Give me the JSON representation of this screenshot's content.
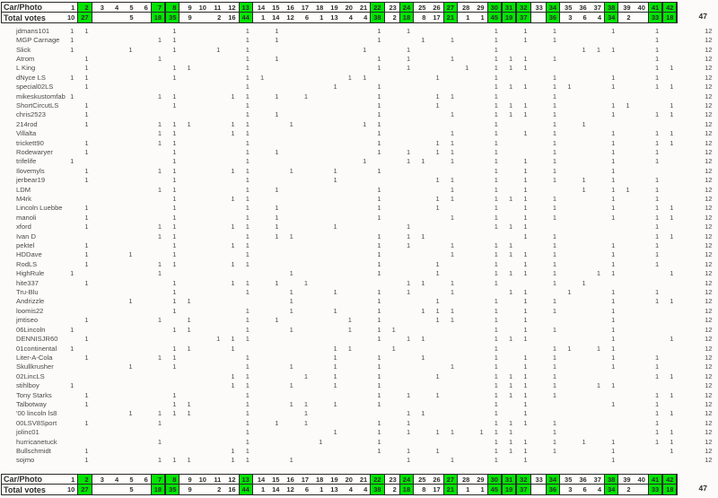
{
  "header": {
    "car_photo_label": "Car/Photo",
    "total_votes_label": "Total votes",
    "grand_total": "47"
  },
  "vote_mark": "1",
  "green_color": "#00e400",
  "columns": [
    1,
    2,
    3,
    4,
    5,
    6,
    7,
    8,
    9,
    10,
    11,
    12,
    13,
    14,
    15,
    16,
    17,
    18,
    19,
    20,
    21,
    22,
    23,
    24,
    25,
    26,
    27,
    28,
    29,
    30,
    31,
    32,
    33,
    34,
    35,
    36,
    37,
    38,
    39,
    40,
    41,
    42
  ],
  "green_columns": [
    2,
    7,
    8,
    13,
    22,
    24,
    27,
    30,
    31,
    32,
    34,
    38,
    41,
    42
  ],
  "totals": [
    "10",
    "27",
    "",
    "",
    "5",
    "",
    "18",
    "35",
    "9",
    "",
    "2",
    "16",
    "44",
    "1",
    "14",
    "12",
    "6",
    "1",
    "13",
    "4",
    "4",
    "38",
    "2",
    "18",
    "8",
    "17",
    "21",
    "1",
    "1",
    "45",
    "19",
    "37",
    "",
    "36",
    "3",
    "6",
    "4",
    "34",
    "2",
    "",
    "33",
    "18"
  ],
  "voters": [
    {
      "name": "jdmans101",
      "votes": [
        1,
        2,
        8,
        13,
        15,
        22,
        24,
        30,
        32,
        34,
        38,
        41
      ],
      "total": "12"
    },
    {
      "name": "MGP Carnage",
      "votes": [
        1,
        7,
        8,
        13,
        15,
        22,
        25,
        27,
        30,
        32,
        34,
        41
      ],
      "total": "12"
    },
    {
      "name": "Slick",
      "votes": [
        1,
        5,
        8,
        11,
        13,
        21,
        24,
        30,
        36,
        37,
        38,
        41
      ],
      "total": "12"
    },
    {
      "name": "Atrom",
      "votes": [
        2,
        7,
        13,
        15,
        22,
        24,
        27,
        30,
        31,
        32,
        34,
        41
      ],
      "total": "12"
    },
    {
      "name": "L King",
      "votes": [
        2,
        8,
        9,
        13,
        22,
        24,
        28,
        30,
        31,
        32,
        41,
        42
      ],
      "total": "12"
    },
    {
      "name": "dNyce LS",
      "votes": [
        1,
        2,
        8,
        13,
        14,
        20,
        21,
        26,
        30,
        34,
        38,
        41
      ],
      "total": "12"
    },
    {
      "name": "special02LS",
      "votes": [
        2,
        13,
        19,
        22,
        30,
        31,
        32,
        34,
        35,
        38,
        41,
        42
      ],
      "total": "12"
    },
    {
      "name": "mikeskustomfab",
      "votes": [
        1,
        7,
        8,
        12,
        13,
        15,
        17,
        22,
        26,
        27,
        30,
        34
      ],
      "total": "12"
    },
    {
      "name": "ShortCircutLS",
      "votes": [
        2,
        8,
        13,
        22,
        26,
        30,
        31,
        32,
        34,
        38,
        39,
        42
      ],
      "total": "12"
    },
    {
      "name": "chris2523",
      "votes": [
        2,
        13,
        15,
        22,
        27,
        30,
        31,
        32,
        34,
        38,
        41,
        42
      ],
      "total": "12"
    },
    {
      "name": "214rod",
      "votes": [
        2,
        7,
        8,
        9,
        12,
        13,
        16,
        21,
        22,
        30,
        34,
        36
      ],
      "total": "12"
    },
    {
      "name": "Villalta",
      "votes": [
        7,
        8,
        12,
        13,
        22,
        27,
        30,
        32,
        34,
        38,
        41,
        42
      ],
      "total": "12"
    },
    {
      "name": "trickett90",
      "votes": [
        2,
        7,
        8,
        13,
        22,
        26,
        27,
        30,
        34,
        38,
        41,
        42
      ],
      "total": "12"
    },
    {
      "name": "Rodewaryer",
      "votes": [
        2,
        8,
        13,
        15,
        22,
        24,
        26,
        27,
        30,
        34,
        38,
        41
      ],
      "total": "12"
    },
    {
      "name": "trifelife",
      "votes": [
        1,
        8,
        13,
        21,
        24,
        25,
        27,
        30,
        32,
        34,
        38,
        41
      ],
      "total": "12"
    },
    {
      "name": "Ilovemyls",
      "votes": [
        2,
        7,
        8,
        12,
        13,
        16,
        19,
        22,
        30,
        32,
        34,
        38
      ],
      "total": "12"
    },
    {
      "name": "jerbear19",
      "votes": [
        2,
        8,
        13,
        19,
        26,
        27,
        30,
        32,
        34,
        36,
        38,
        41
      ],
      "total": "12"
    },
    {
      "name": "LDM",
      "votes": [
        7,
        8,
        13,
        15,
        22,
        27,
        30,
        32,
        36,
        38,
        39,
        41
      ],
      "total": "12"
    },
    {
      "name": "M4rk",
      "votes": [
        8,
        12,
        13,
        22,
        26,
        27,
        30,
        31,
        32,
        34,
        38,
        41
      ],
      "total": "12"
    },
    {
      "name": "Lincoln Luebbe",
      "votes": [
        2,
        8,
        13,
        15,
        22,
        26,
        30,
        32,
        34,
        38,
        41,
        42
      ],
      "total": "12"
    },
    {
      "name": "manoli",
      "votes": [
        2,
        8,
        13,
        15,
        22,
        27,
        30,
        32,
        34,
        38,
        41,
        42
      ],
      "total": "12"
    },
    {
      "name": "xford",
      "votes": [
        2,
        7,
        8,
        12,
        13,
        15,
        19,
        24,
        30,
        31,
        32,
        41
      ],
      "total": "12"
    },
    {
      "name": "Ivan D",
      "votes": [
        7,
        8,
        13,
        15,
        16,
        22,
        24,
        25,
        32,
        34,
        41,
        42
      ],
      "total": "12"
    },
    {
      "name": "pektel",
      "votes": [
        2,
        8,
        12,
        13,
        22,
        24,
        27,
        30,
        31,
        34,
        38,
        41
      ],
      "total": "12"
    },
    {
      "name": "HDDave",
      "votes": [
        2,
        5,
        8,
        13,
        22,
        27,
        30,
        31,
        32,
        34,
        38,
        41
      ],
      "total": "12"
    },
    {
      "name": "RodLS",
      "votes": [
        2,
        7,
        8,
        12,
        13,
        22,
        26,
        30,
        32,
        34,
        38,
        41
      ],
      "total": "12"
    },
    {
      "name": "HighRule",
      "votes": [
        1,
        7,
        16,
        22,
        26,
        30,
        31,
        32,
        34,
        37,
        38,
        42
      ],
      "total": "12"
    },
    {
      "name": "hite337",
      "votes": [
        2,
        8,
        12,
        13,
        15,
        17,
        24,
        25,
        27,
        30,
        34,
        36
      ],
      "total": "12"
    },
    {
      "name": "Tru-Blu",
      "votes": [
        8,
        13,
        16,
        19,
        22,
        24,
        27,
        31,
        32,
        35,
        38,
        41
      ],
      "total": "12"
    },
    {
      "name": "Andrizzle",
      "votes": [
        5,
        8,
        9,
        16,
        22,
        26,
        30,
        32,
        34,
        38,
        41,
        42
      ],
      "total": "12"
    },
    {
      "name": "loomis22",
      "votes": [
        8,
        13,
        16,
        19,
        22,
        25,
        26,
        27,
        30,
        32,
        34,
        38
      ],
      "total": "12"
    },
    {
      "name": "jmtiseo",
      "votes": [
        2,
        7,
        9,
        13,
        15,
        20,
        22,
        26,
        27,
        30,
        32,
        38
      ],
      "total": "12"
    },
    {
      "name": "06Lincoln",
      "votes": [
        1,
        8,
        9,
        13,
        16,
        20,
        22,
        23,
        30,
        32,
        34,
        38
      ],
      "total": "12"
    },
    {
      "name": "DENNISJR60",
      "votes": [
        2,
        11,
        12,
        13,
        22,
        24,
        25,
        30,
        31,
        32,
        38,
        42
      ],
      "total": "12"
    },
    {
      "name": "01continental",
      "votes": [
        1,
        8,
        9,
        12,
        19,
        20,
        23,
        30,
        34,
        35,
        37,
        38
      ],
      "total": "12"
    },
    {
      "name": "Liter-A-Cola",
      "votes": [
        2,
        7,
        8,
        13,
        19,
        22,
        25,
        30,
        32,
        34,
        38,
        41
      ],
      "total": "12"
    },
    {
      "name": "Skullkrusher",
      "votes": [
        5,
        8,
        13,
        16,
        19,
        22,
        27,
        30,
        32,
        34,
        38,
        41
      ],
      "total": "12"
    },
    {
      "name": "02LincLS",
      "votes": [
        12,
        13,
        17,
        19,
        22,
        26,
        30,
        31,
        32,
        34,
        41,
        42
      ],
      "total": "12"
    },
    {
      "name": "stihlboy",
      "votes": [
        1,
        12,
        13,
        16,
        19,
        22,
        30,
        31,
        32,
        34,
        37,
        38
      ],
      "total": "12"
    },
    {
      "name": "Tony Starks",
      "votes": [
        2,
        8,
        13,
        22,
        24,
        26,
        30,
        31,
        32,
        34,
        41,
        42
      ],
      "total": "12"
    },
    {
      "name": "Talbotway",
      "votes": [
        2,
        8,
        9,
        13,
        16,
        17,
        19,
        22,
        30,
        32,
        38,
        41
      ],
      "total": "12"
    },
    {
      "name": "'00 lincoln ls8",
      "votes": [
        5,
        7,
        8,
        9,
        13,
        17,
        24,
        25,
        30,
        32,
        41,
        42
      ],
      "total": "12"
    },
    {
      "name": "00LSV8Sport",
      "votes": [
        2,
        7,
        13,
        15,
        17,
        22,
        24,
        30,
        31,
        32,
        34,
        41
      ],
      "total": "12"
    },
    {
      "name": "jolinc01",
      "votes": [
        13,
        19,
        22,
        24,
        26,
        27,
        29,
        30,
        31,
        34,
        41,
        42
      ],
      "total": "12"
    },
    {
      "name": "hurricanetuck",
      "votes": [
        7,
        13,
        18,
        22,
        30,
        31,
        32,
        34,
        36,
        38,
        41,
        42
      ],
      "total": "12"
    },
    {
      "name": "Bullschmidt",
      "votes": [
        2,
        12,
        13,
        22,
        24,
        26,
        30,
        31,
        32,
        34,
        38,
        42
      ],
      "total": "12"
    },
    {
      "name": "sojmo",
      "votes": [
        2,
        7,
        8,
        9,
        12,
        13,
        16,
        24,
        27,
        30,
        32,
        38
      ],
      "total": "12"
    }
  ]
}
